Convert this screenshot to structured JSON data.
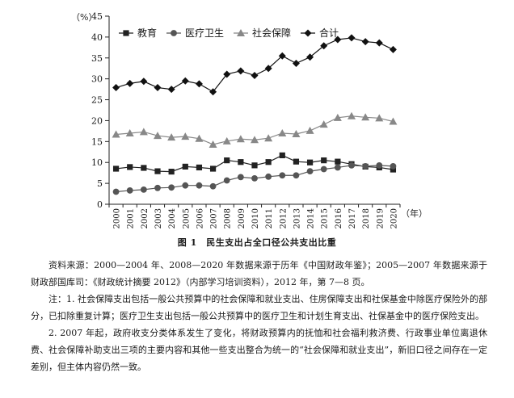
{
  "chart_data": {
    "type": "line",
    "y_unit": "（%）",
    "x_unit": "（年）",
    "ylim": [
      0,
      45
    ],
    "yticks": [
      0,
      5,
      10,
      15,
      20,
      25,
      30,
      35,
      40,
      45
    ],
    "legend_position": "top-left",
    "grid": false,
    "categories": [
      "2000",
      "2001",
      "2002",
      "2003",
      "2004",
      "2005",
      "2006",
      "2007",
      "2008",
      "2009",
      "2010",
      "2011",
      "2012",
      "2013",
      "2014",
      "2015",
      "2016",
      "2017",
      "2018",
      "2019",
      "2020"
    ],
    "series": [
      {
        "name": "教育",
        "marker": "square",
        "color": "#222222",
        "values": [
          8.5,
          8.9,
          8.7,
          7.9,
          7.8,
          9.0,
          8.8,
          8.5,
          10.5,
          10.1,
          9.3,
          10.1,
          11.7,
          10.2,
          10.0,
          10.5,
          10.2,
          9.6,
          9.0,
          8.8,
          8.3
        ]
      },
      {
        "name": "医疗卫生",
        "marker": "circle",
        "color": "#555555",
        "values": [
          3.0,
          3.3,
          3.5,
          3.9,
          4.0,
          4.5,
          4.5,
          4.3,
          5.7,
          6.5,
          6.2,
          6.6,
          6.9,
          6.9,
          7.9,
          8.4,
          8.8,
          9.3,
          9.1,
          9.3,
          9.1
        ]
      },
      {
        "name": "社会保障",
        "marker": "triangle",
        "color": "#888888",
        "values": [
          16.7,
          17.0,
          17.3,
          16.4,
          16.0,
          16.2,
          15.7,
          14.3,
          15.1,
          15.6,
          15.4,
          15.8,
          17.0,
          16.8,
          17.6,
          19.1,
          20.7,
          21.1,
          20.8,
          20.6,
          19.8
        ]
      },
      {
        "name": "合计",
        "marker": "diamond",
        "color": "#111111",
        "values": [
          27.9,
          28.9,
          29.4,
          27.9,
          27.5,
          29.5,
          28.8,
          26.9,
          31.1,
          31.9,
          30.8,
          32.5,
          35.5,
          33.7,
          35.2,
          37.9,
          39.4,
          39.8,
          38.9,
          38.6,
          37.0
        ]
      }
    ]
  },
  "figure": {
    "caption": "图 1　民生支出占全口径公共支出比重"
  },
  "notes": {
    "source": "资料来源：2000—2004 年、2008—2020 年数据来源于历年《中国财政年鉴》；2005—2007 年数据来源于财政部国库司：《财政统计摘要 2012》（内部学习培训资料），2012 年，第 7—8 页。",
    "note1": "注：1. 社会保障支出包括一般公共预算中的社会保障和就业支出、住房保障支出和社保基金中除医疗保险外的部分，已扣除重复计算；医疗卫生支出包括一般公共预算中的医疗卫生和计划生育支出、社保基金中的医疗保险支出。",
    "note2": "2. 2007 年起，政府收支分类体系发生了变化，将财政预算内的抚恤和社会福利救济费、行政事业单位离退休费、社会保障补助支出三项的主要内容和其他一些支出整合为统一的“社会保障和就业支出”，新旧口径之间存在一定差别，但主体内容仍然一致。"
  }
}
